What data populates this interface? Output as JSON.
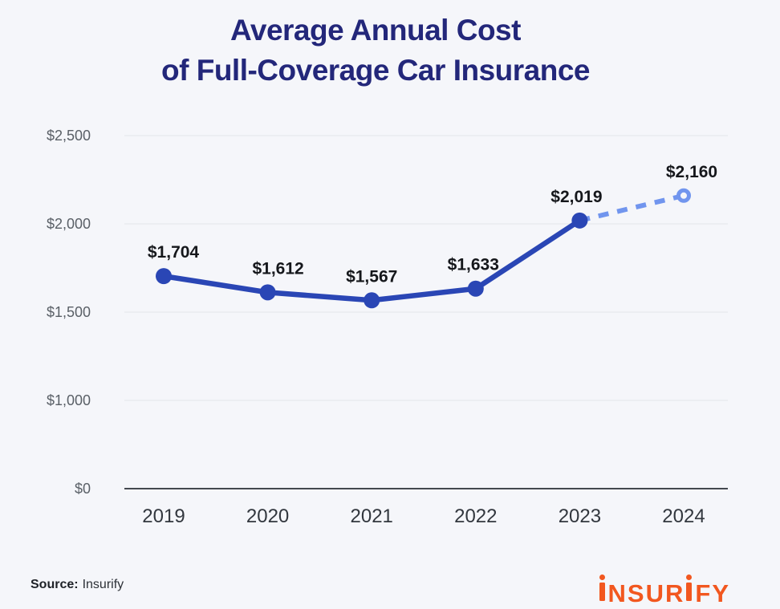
{
  "page": {
    "background": "#f5f6fa"
  },
  "title": {
    "line1": "Average Annual Cost",
    "line2": "of Full-Coverage Car Insurance",
    "color": "#23277a"
  },
  "chart_data": {
    "type": "line",
    "title": "Average Annual Cost of Full-Coverage Car Insurance",
    "categories": [
      "2019",
      "2020",
      "2021",
      "2022",
      "2023",
      "2024"
    ],
    "values": [
      1704,
      1612,
      1567,
      1633,
      2019,
      2160
    ],
    "point_labels": [
      "$1,704",
      "$1,612",
      "$1,567",
      "$1,633",
      "$2,019",
      "$2,160"
    ],
    "projected_start_index": 4,
    "projected_note": "2024 value is projected: dashed light-blue segment with open ring marker",
    "y_axis": {
      "ticks": [
        "$2,500",
        "$2,000",
        "$1,500",
        "$1,000",
        "$0"
      ],
      "tick_values": [
        2500,
        2000,
        1500,
        1000,
        0
      ],
      "axis_note": "evenly spaced gridlines; bottom $0 line compressed (axis break below $1,000) and drawn darker"
    },
    "ylim": [
      0,
      2500
    ],
    "xlabel": "",
    "ylabel": "",
    "grid": "horizontal-only",
    "legend": "none",
    "colors": {
      "line": "#2a46b5",
      "projected": "#7195ee",
      "data_label": "#15171b",
      "y_tick": "#5a6067",
      "x_tick": "#32373e",
      "gridline": "#e4e6eb",
      "axis_line": "#43484f"
    }
  },
  "footer": {
    "source_label": "Source:",
    "source_value": "Insurify",
    "logo_text": "INSURIFY",
    "logo_color": "#f2571f"
  }
}
